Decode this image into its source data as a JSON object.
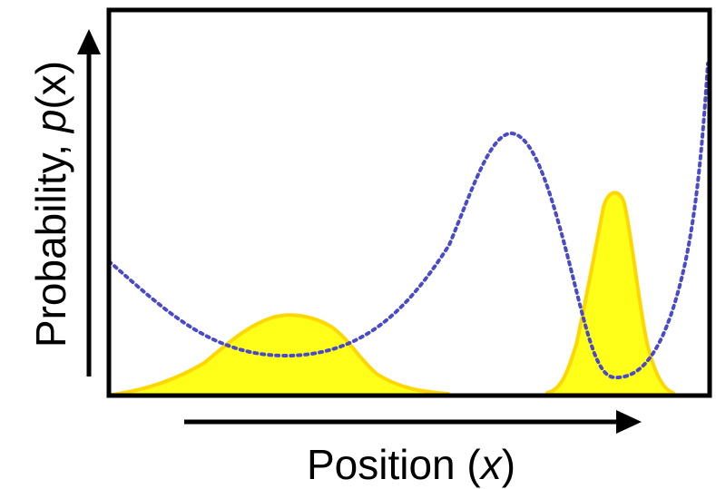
{
  "y_axis_label": {
    "prefix": "Probability, ",
    "var": "p",
    "suffix": "(x)"
  },
  "x_axis_label": {
    "prefix": "Position (",
    "var": "x",
    "suffix": ")"
  },
  "colors": {
    "frame": "#000000",
    "distribution_fill": "#ffff1a",
    "distribution_stroke": "#ffd700",
    "potential_curve": "#4a4ac8"
  }
}
